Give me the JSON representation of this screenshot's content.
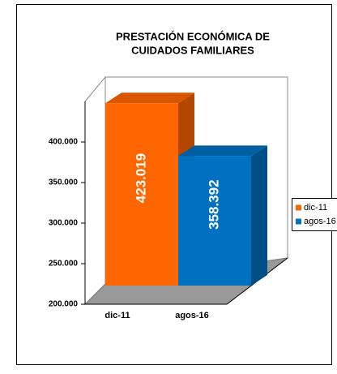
{
  "chart_data": {
    "type": "bar3d",
    "title": [
      "PRESTACIÓN  ECONÓMICA DE",
      "CUIDADOS FAMILIARES"
    ],
    "categories": [
      "dic-11",
      "agos-16"
    ],
    "series": [
      {
        "name": "dic-11",
        "color": "#ff6600"
      },
      {
        "name": "agos-16",
        "color": "#0070c0"
      }
    ],
    "values": [
      423019,
      358392
    ],
    "value_labels": [
      "423.019",
      "358.392"
    ],
    "ylim": [
      200000,
      450000
    ],
    "yticks": [
      {
        "value": 200000,
        "label": "200.000"
      },
      {
        "value": 250000,
        "label": "250.000"
      },
      {
        "value": 300000,
        "label": "300.000"
      },
      {
        "value": 350000,
        "label": "350.000"
      },
      {
        "value": 400000,
        "label": "400.000"
      }
    ],
    "grid": false,
    "legend": "right"
  }
}
